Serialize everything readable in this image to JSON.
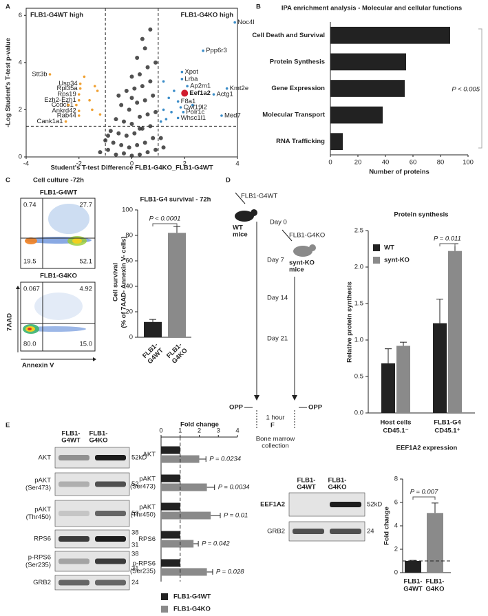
{
  "panel_letters": [
    "A",
    "B",
    "C",
    "D",
    "E",
    "F"
  ],
  "chart_data": [
    {
      "type": "scatter",
      "xlabel": "Student's T-test Difference FLB1-G4KO_FLB1-G4WT",
      "ylabel": "-Log Student's T-test p-value",
      "xlim": [
        -4,
        4
      ],
      "ylim": [
        0,
        6.3
      ],
      "xticks": [
        -4,
        -2,
        0,
        2,
        4
      ],
      "yticks": [
        0,
        2,
        4,
        6
      ],
      "thresholds_x": [
        -1,
        1
      ],
      "threshold_y": 1.3,
      "annotations": [
        "FLB1-G4WT high",
        "FLB1-G4KO high"
      ],
      "series": [
        {
          "color": "#333333",
          "x": [
            -1.2,
            -0.9,
            -0.6,
            -0.3,
            0,
            0.3,
            0.6,
            0.9,
            1.2,
            -1.0,
            -0.7,
            -0.4,
            -0.1,
            0.2,
            0.5,
            0.8,
            -0.8,
            -0.5,
            -0.2,
            0.1,
            0.4,
            0.7,
            -0.6,
            -0.3,
            0,
            0.3,
            0.6,
            0.9,
            -0.4,
            -0.1,
            0.2,
            0.5,
            0.8,
            -0.2,
            0.1,
            0.4,
            0.7,
            0,
            0.3,
            0.6,
            0.2,
            0.5,
            0.4,
            0.7,
            0.9,
            -0.5,
            0.0,
            0.3,
            -0.9,
            1.1
          ],
          "y": [
            0.2,
            0.3,
            0.1,
            0.15,
            0.05,
            0.1,
            0.2,
            0.3,
            0.4,
            0.7,
            0.6,
            0.5,
            0.4,
            0.5,
            0.6,
            0.8,
            1.1,
            1.0,
            0.9,
            1.0,
            1.2,
            1.3,
            1.6,
            1.5,
            1.4,
            1.7,
            1.8,
            1.9,
            2.2,
            2.0,
            2.3,
            2.4,
            2.6,
            2.8,
            2.9,
            3.0,
            3.2,
            3.4,
            3.5,
            3.8,
            4.2,
            4.6,
            5.0,
            5.4,
            4.0,
            2.6,
            2.5,
            1.2,
            0.9,
            0.8
          ]
        },
        {
          "color": "#f0a030",
          "label_side": "left",
          "x": [
            -3.1,
            -1.95,
            -1.95,
            -2.0,
            -2.0,
            -2.1,
            -2.0,
            -2.0,
            -2.5,
            -1.5,
            -1.3,
            -1.8,
            -1.2,
            -1.6,
            -1.4,
            -2.4
          ],
          "y": [
            3.5,
            3.1,
            2.9,
            2.65,
            2.4,
            2.2,
            1.95,
            1.75,
            1.5,
            2.0,
            2.8,
            3.4,
            1.8,
            2.4,
            3.0,
            2.2
          ],
          "labels": [
            "Stt3b",
            "Usp34",
            "Rpl35a",
            "Rps19",
            "Ezh2-Ezh1",
            "Ccdc51",
            "Ankrd42",
            "Rab44",
            "Cank1a1",
            null,
            null,
            null,
            null,
            null,
            null,
            null
          ]
        },
        {
          "color": "#3a8cc8",
          "label_side": "right",
          "x": [
            3.9,
            2.7,
            1.9,
            1.9,
            2.1,
            3.6,
            3.1,
            1.75,
            1.85,
            1.95,
            3.4,
            1.75,
            1.2,
            1.4,
            1.3,
            1.6,
            1.2,
            1.5,
            2.3,
            1.1
          ],
          "y": [
            5.7,
            4.5,
            3.6,
            3.3,
            3.0,
            2.9,
            2.65,
            2.35,
            2.1,
            1.9,
            1.75,
            1.65,
            2.0,
            2.5,
            1.6,
            2.8,
            3.2,
            1.9,
            2.2,
            1.5
          ],
          "labels": [
            "Noc4l",
            "Ppp6r3",
            "Xpot",
            "Lrba",
            "Ap2m1",
            "Kmt2e",
            "Actg1",
            "F8a1",
            "Cwf19l2",
            "Polr1c",
            "Med7",
            "Whsc1l1",
            null,
            null,
            null,
            null,
            null,
            null,
            null,
            null
          ]
        },
        {
          "color": "#d01c2e",
          "label_side": "right",
          "x": [
            2.0
          ],
          "y": [
            2.7
          ],
          "labels": [
            "Eef1a2"
          ]
        }
      ]
    },
    {
      "type": "bar",
      "orientation": "horizontal",
      "title": "IPA enrichment analysis - Molecular and cellular functions",
      "categories": [
        "Cell Death and Survival",
        "Protein Synthesis",
        "Gene Expression",
        "Molecular Transport",
        "RNA Trafficking"
      ],
      "values": [
        87,
        55,
        54,
        38,
        9
      ],
      "color": "#222222",
      "xlim": [
        0,
        100
      ],
      "xticks": [
        0,
        20,
        40,
        60,
        80,
        100
      ],
      "xlabel": "Number of proteins",
      "annotation": "P < 0.005"
    },
    {
      "type": "bar",
      "title": "FLB1-G4 survival - 72h",
      "categories": [
        [
          "FLB1-",
          "G4WT"
        ],
        [
          "FLB1-",
          "G4KO"
        ]
      ],
      "values": [
        12,
        82
      ],
      "errors": [
        2,
        5
      ],
      "colors": [
        "#222222",
        "#8a8a8a"
      ],
      "ylim": [
        0,
        100
      ],
      "yticks": [
        0,
        20,
        40,
        60,
        80,
        100
      ],
      "ylabel": [
        "Cell survival",
        "(% of 7AAD- Annexin V- cells)"
      ],
      "annotation": "P < 0.0001"
    },
    {
      "type": "bar",
      "title": "Protein synthesis",
      "categories": [
        [
          "Host cells",
          "CD45.1⁻"
        ],
        [
          "FLB1-G4",
          "CD45.1⁺"
        ]
      ],
      "series": [
        {
          "name": "WT",
          "color": "#222222",
          "values": [
            0.68,
            1.23
          ],
          "errors": [
            0.2,
            0.33
          ]
        },
        {
          "name": "synt-KO",
          "color": "#8a8a8a",
          "values": [
            0.92,
            2.22
          ],
          "errors": [
            0.05,
            0.1
          ]
        }
      ],
      "ylim": [
        0,
        2.5
      ],
      "yticks": [
        {
          "value": 0,
          "label": "0.0"
        },
        0.5,
        {
          "value": 1,
          "label": "1.0"
        },
        1.5,
        {
          "value": 2,
          "label": "2.0"
        },
        2.5
      ],
      "ylabel": "Relative protein synthesis",
      "annotation": "P = 0.011"
    },
    {
      "type": "bar",
      "orientation": "horizontal",
      "title": "Fold change",
      "categories": [
        [
          "AKT"
        ],
        [
          "pAKT",
          "(Ser473)"
        ],
        [
          "pAKT",
          "(Thr450)"
        ],
        [
          "RPS6"
        ],
        [
          "p-RPS6",
          "(Ser235)"
        ]
      ],
      "series": [
        {
          "name": "FLB1-G4WT",
          "color": "#222222",
          "values": [
            1,
            1,
            1,
            1,
            1
          ]
        },
        {
          "name": "FLB1-G4KO",
          "color": "#8a8a8a",
          "values": [
            2.0,
            2.4,
            2.6,
            1.7,
            2.4
          ],
          "errors": [
            0.35,
            0.4,
            0.5,
            0.25,
            0.3
          ]
        }
      ],
      "xlim": [
        0,
        4
      ],
      "xticks": [
        0,
        1,
        2,
        3,
        4
      ],
      "reference_line": 1,
      "annotations": [
        "P = 0.0234",
        "P = 0.0034",
        "P = 0.01",
        "P = 0.042",
        "P = 0.028"
      ]
    },
    {
      "type": "bar",
      "title": "EEF1A2 expression",
      "categories": [
        [
          "FLB1-",
          "G4WT"
        ],
        [
          "FLB1-",
          "G4KO"
        ]
      ],
      "values": [
        1,
        5.1
      ],
      "errors": [
        0.05,
        0.85
      ],
      "colors": [
        "#222222",
        "#8a8a8a"
      ],
      "ylim": [
        0,
        8
      ],
      "yticks": [
        0,
        2,
        4,
        6,
        8
      ],
      "ylabel": "Fold change",
      "reference_line": 1,
      "annotation": "P = 0.007"
    }
  ],
  "flow": {
    "title": "Cell culture -72h",
    "y_label": "7AAD",
    "x_label": "Annexin V",
    "plots": [
      {
        "label": "FLB1-G4WT",
        "quadrants": [
          "0.74",
          "27.7",
          "19.5",
          "52.1"
        ]
      },
      {
        "label": "FLB1-G4KO",
        "quadrants": [
          "0.067",
          "4.92",
          "80.0",
          "15.0"
        ]
      }
    ]
  },
  "diagram": {
    "donor": "FLB1-G4WT",
    "donor_mice": [
      "WT",
      "mice"
    ],
    "day0": "Day 0",
    "recipient": "FLB1-G4KO",
    "recipient_mice": [
      "synt-KO",
      "mice"
    ],
    "day7": "Day 7",
    "day14": "Day 14",
    "day21": "Day 21",
    "opp": [
      "OPP",
      "OPP"
    ],
    "duration": "1 hour",
    "endpoint": [
      "Bone marrow",
      "collection"
    ]
  },
  "blots_e": {
    "columns": [
      [
        "FLB1-",
        "G4WT"
      ],
      [
        "FLB1-",
        "G4KO"
      ]
    ],
    "rows": [
      {
        "label": [
          "AKT"
        ],
        "markers": [
          "52kD"
        ]
      },
      {
        "label": [
          "pAKT",
          "(Ser473)"
        ],
        "markers": [
          "52"
        ]
      },
      {
        "label": [
          "pAKT",
          "(Thr450)"
        ],
        "markers": [
          "52"
        ]
      },
      {
        "label": [
          "RPS6"
        ],
        "markers": [
          "38",
          "31"
        ]
      },
      {
        "label": [
          "p-RPS6",
          "(Ser235)"
        ],
        "markers": [
          "38",
          "31"
        ]
      },
      {
        "label": [
          "GRB2"
        ],
        "markers": [
          "24"
        ]
      }
    ]
  },
  "blots_f": {
    "columns": [
      [
        "FLB1-",
        "G4WT"
      ],
      [
        "FLB1-",
        "G4KO"
      ]
    ],
    "rows": [
      {
        "label": [
          "EEF1A2"
        ],
        "markers": [
          "52kD"
        ]
      },
      {
        "label": [
          "GRB2"
        ],
        "markers": [
          "24"
        ]
      }
    ]
  }
}
